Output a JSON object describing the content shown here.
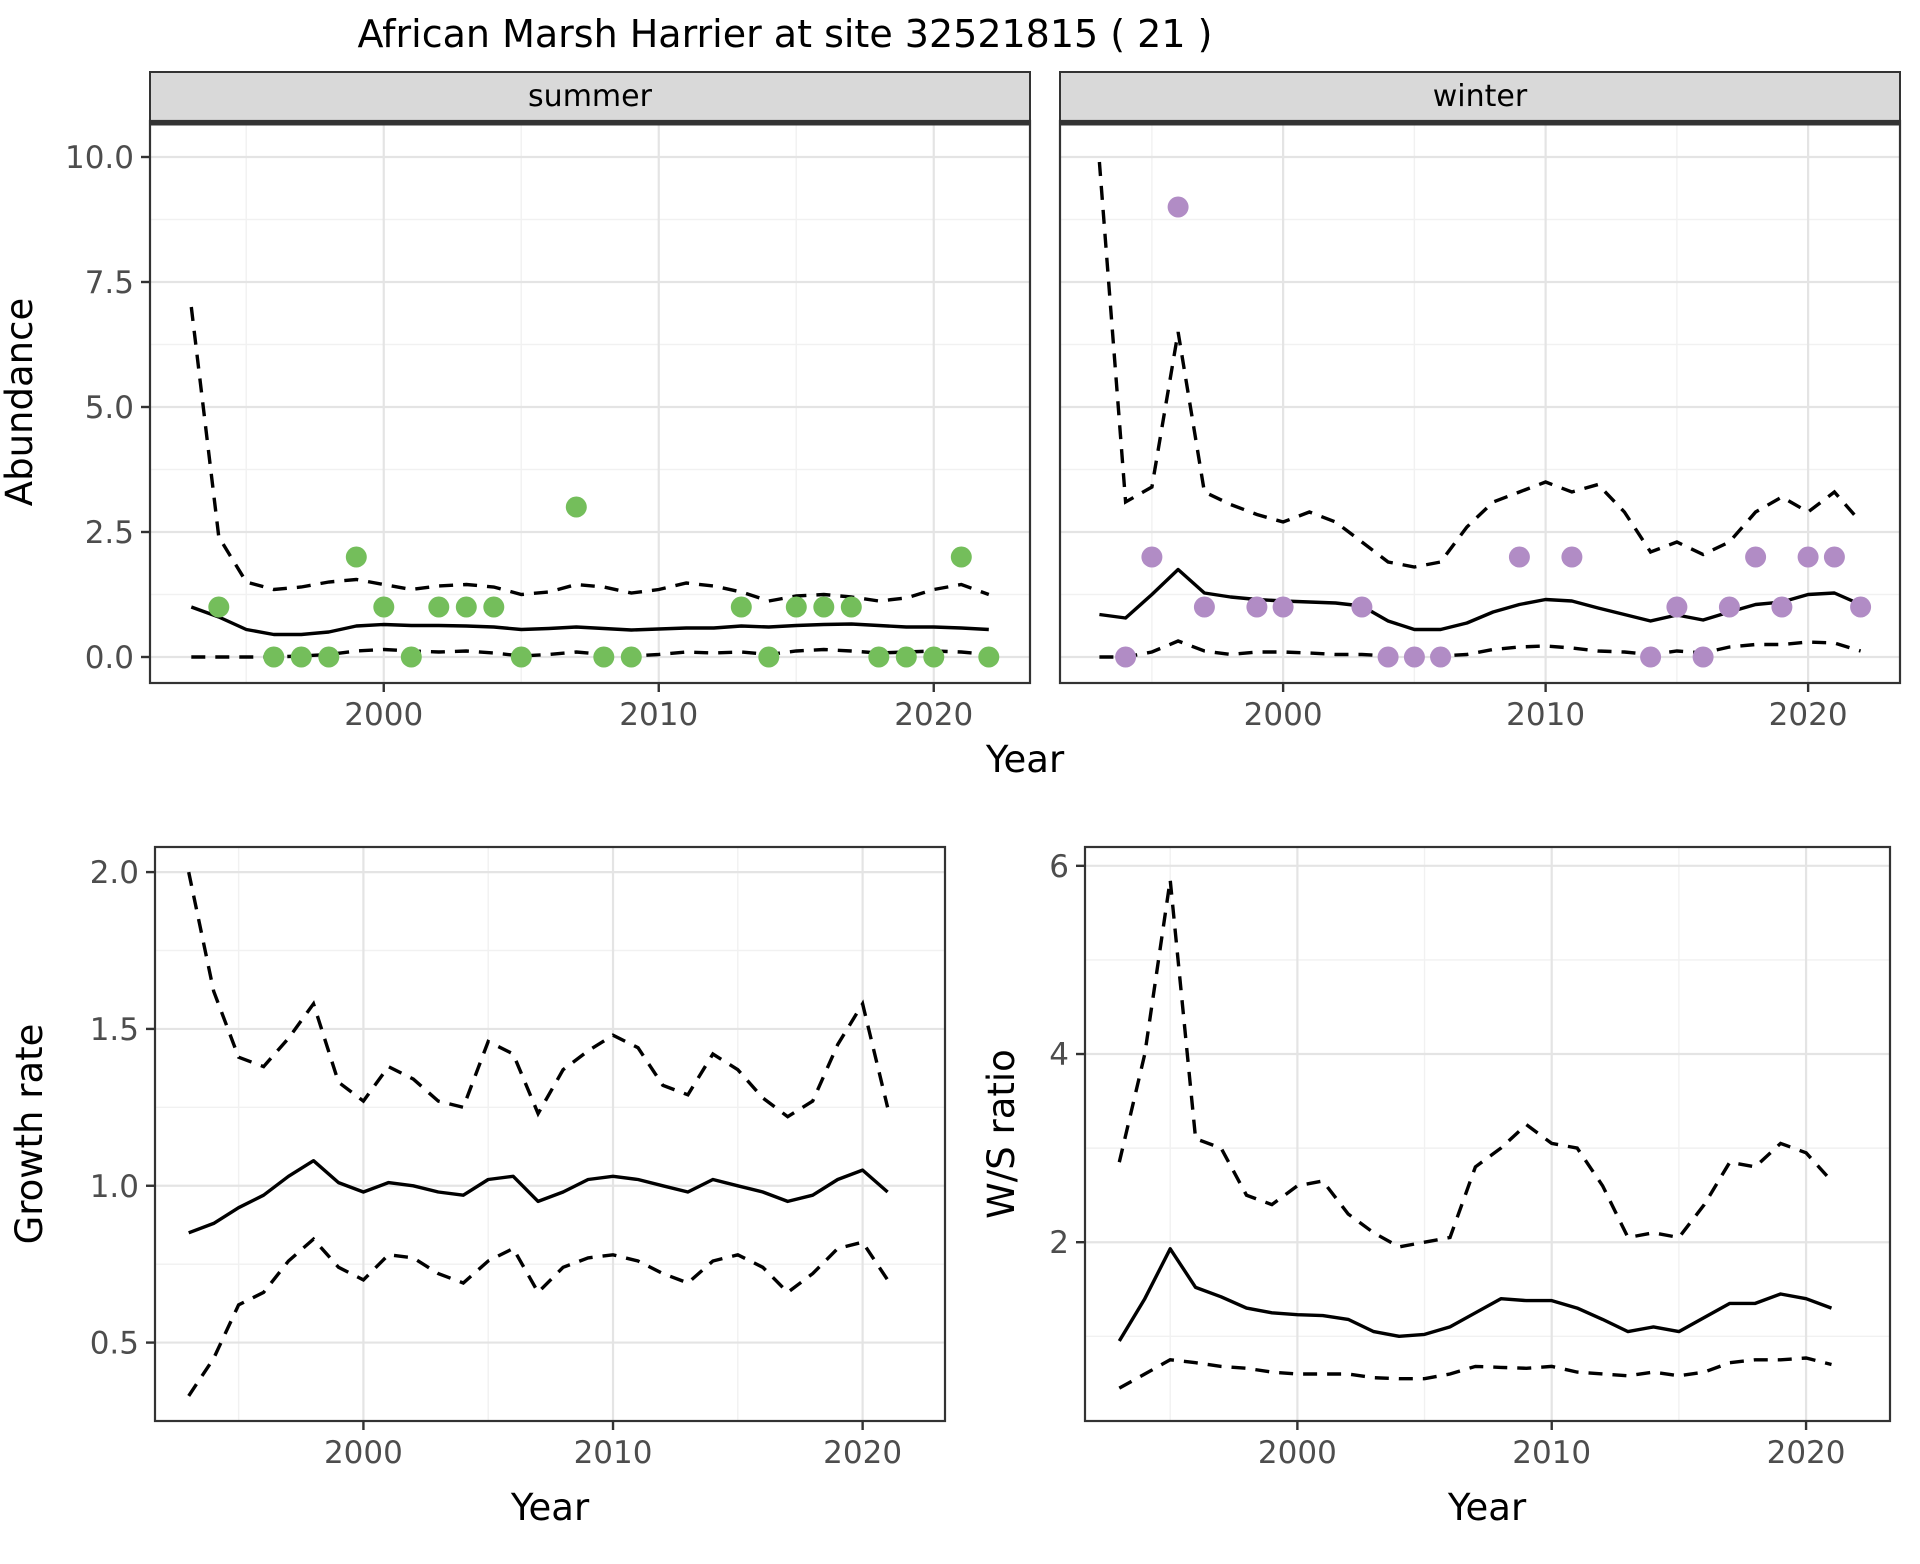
{
  "title": "African Marsh Harrier at site 32521815 ( 21 )",
  "labels": {
    "year_axis": "Year",
    "abundance_axis": "Abundance",
    "growth_axis": "Growth rate",
    "ws_axis": "W/S ratio",
    "facet_summer": "summer",
    "facet_winter": "winter"
  },
  "colors": {
    "summer_point": "#74BE5B",
    "winter_point": "#B18CC5",
    "line": "#000000",
    "grid_major": "#E4E4E4",
    "grid_minor": "#F1F1F1",
    "strip_bg": "#D9D9D9",
    "panel_border": "#333333",
    "tick_text": "#4D4D4D",
    "title_text": "#000000"
  },
  "chart_data": {
    "abundance": {
      "type": "line",
      "title": "",
      "xlabel": "Year",
      "ylabel": "Abundance",
      "x_range": [
        1991.5,
        2023.5
      ],
      "y_range": [
        -0.52,
        10.72
      ],
      "x_ticks_major": [
        2000,
        2010,
        2020
      ],
      "x_ticks_minor": [
        1995,
        2005,
        2015
      ],
      "y_ticks_major": [
        0,
        2.5,
        5,
        7.5,
        10
      ],
      "y_tick_labels": [
        "0.0",
        "2.5",
        "5.0",
        "7.5",
        "10.0"
      ],
      "y_ticks_minor": [
        1.25,
        3.75,
        6.25,
        8.75
      ],
      "line_years": [
        1993,
        1994,
        1995,
        1996,
        1997,
        1998,
        1999,
        2000,
        2001,
        2002,
        2003,
        2004,
        2005,
        2006,
        2007,
        2008,
        2009,
        2010,
        2011,
        2012,
        2013,
        2014,
        2015,
        2016,
        2017,
        2018,
        2019,
        2020,
        2021,
        2022
      ],
      "panels": [
        {
          "name": "summer",
          "mean": [
            1.0,
            0.8,
            0.55,
            0.45,
            0.45,
            0.5,
            0.62,
            0.65,
            0.63,
            0.63,
            0.62,
            0.6,
            0.55,
            0.57,
            0.6,
            0.57,
            0.54,
            0.56,
            0.58,
            0.58,
            0.62,
            0.6,
            0.63,
            0.65,
            0.66,
            0.63,
            0.6,
            0.6,
            0.58,
            0.55
          ],
          "hi": [
            7.0,
            2.4,
            1.5,
            1.35,
            1.4,
            1.5,
            1.55,
            1.45,
            1.35,
            1.42,
            1.45,
            1.4,
            1.25,
            1.3,
            1.45,
            1.4,
            1.28,
            1.35,
            1.48,
            1.42,
            1.3,
            1.12,
            1.22,
            1.25,
            1.2,
            1.12,
            1.18,
            1.35,
            1.45,
            1.25
          ],
          "lo": [
            0.0,
            0.0,
            0.0,
            0.0,
            0.02,
            0.05,
            0.12,
            0.15,
            0.12,
            0.1,
            0.12,
            0.08,
            0.02,
            0.05,
            0.1,
            0.05,
            0.02,
            0.05,
            0.1,
            0.08,
            0.1,
            0.05,
            0.12,
            0.15,
            0.12,
            0.08,
            0.1,
            0.12,
            0.1,
            0.05
          ],
          "point_years": [
            1994,
            1996,
            1997,
            1998,
            1999,
            2000,
            2001,
            2002,
            2003,
            2004,
            2005,
            2007,
            2008,
            2009,
            2013,
            2014,
            2015,
            2016,
            2017,
            2018,
            2019,
            2020,
            2021,
            2022
          ],
          "point_values": [
            1,
            0,
            0,
            0,
            2,
            1,
            0,
            1,
            1,
            1,
            0,
            3,
            0,
            0,
            1,
            0,
            1,
            1,
            1,
            0,
            0,
            0,
            2,
            0
          ]
        },
        {
          "name": "winter",
          "mean": [
            0.85,
            0.78,
            1.25,
            1.75,
            1.28,
            1.2,
            1.15,
            1.12,
            1.1,
            1.08,
            1.02,
            0.72,
            0.55,
            0.55,
            0.68,
            0.9,
            1.05,
            1.15,
            1.12,
            0.98,
            0.85,
            0.72,
            0.84,
            0.74,
            0.9,
            1.05,
            1.1,
            1.25,
            1.28,
            1.05
          ],
          "hi": [
            9.9,
            3.1,
            3.4,
            6.5,
            3.3,
            3.05,
            2.85,
            2.7,
            2.9,
            2.7,
            2.3,
            1.9,
            1.8,
            1.9,
            2.6,
            3.1,
            3.3,
            3.5,
            3.3,
            3.45,
            2.9,
            2.1,
            2.3,
            2.05,
            2.3,
            2.9,
            3.2,
            2.9,
            3.3,
            2.7
          ],
          "lo": [
            0.0,
            0.0,
            0.1,
            0.32,
            0.12,
            0.05,
            0.1,
            0.1,
            0.08,
            0.05,
            0.05,
            0.02,
            0.02,
            0.02,
            0.05,
            0.15,
            0.2,
            0.22,
            0.18,
            0.12,
            0.1,
            0.05,
            0.12,
            0.08,
            0.2,
            0.25,
            0.25,
            0.3,
            0.28,
            0.12
          ],
          "point_years": [
            1994,
            1995,
            1996,
            1997,
            1999,
            2000,
            2003,
            2004,
            2005,
            2006,
            2009,
            2011,
            2014,
            2015,
            2016,
            2017,
            2018,
            2019,
            2020,
            2021,
            2022
          ],
          "point_values": [
            0,
            2,
            9,
            1,
            1,
            1,
            1,
            0,
            0,
            0,
            2,
            2,
            0,
            1,
            0,
            1,
            2,
            1,
            2,
            2,
            1
          ]
        }
      ]
    },
    "growth": {
      "type": "line",
      "title": "",
      "xlabel": "Year",
      "ylabel": "Growth rate",
      "x_range": [
        1991.65,
        2023.3
      ],
      "y_range": [
        0.25,
        2.08
      ],
      "x_ticks_major": [
        2000,
        2010,
        2020
      ],
      "x_ticks_minor": [
        1995,
        2005,
        2015
      ],
      "y_ticks_major": [
        0.5,
        1.0,
        1.5,
        2.0
      ],
      "y_tick_labels": [
        "0.5",
        "1.0",
        "1.5",
        "2.0"
      ],
      "y_ticks_minor": [
        0.75,
        1.25,
        1.75
      ],
      "line_years": [
        1993,
        1994,
        1995,
        1996,
        1997,
        1998,
        1999,
        2000,
        2001,
        2002,
        2003,
        2004,
        2005,
        2006,
        2007,
        2008,
        2009,
        2010,
        2011,
        2012,
        2013,
        2014,
        2015,
        2016,
        2017,
        2018,
        2019,
        2020,
        2021
      ],
      "mean": [
        0.85,
        0.88,
        0.93,
        0.97,
        1.03,
        1.08,
        1.01,
        0.98,
        1.01,
        1.0,
        0.98,
        0.97,
        1.02,
        1.03,
        0.95,
        0.98,
        1.02,
        1.03,
        1.02,
        1.0,
        0.98,
        1.02,
        1.0,
        0.98,
        0.95,
        0.97,
        1.02,
        1.05,
        0.98
      ],
      "hi": [
        2.0,
        1.62,
        1.41,
        1.38,
        1.47,
        1.58,
        1.33,
        1.27,
        1.38,
        1.34,
        1.27,
        1.25,
        1.46,
        1.42,
        1.23,
        1.37,
        1.43,
        1.48,
        1.44,
        1.32,
        1.29,
        1.42,
        1.37,
        1.28,
        1.22,
        1.27,
        1.45,
        1.58,
        1.25
      ],
      "lo": [
        0.33,
        0.45,
        0.62,
        0.66,
        0.76,
        0.83,
        0.74,
        0.7,
        0.78,
        0.77,
        0.72,
        0.69,
        0.76,
        0.8,
        0.66,
        0.74,
        0.77,
        0.78,
        0.76,
        0.72,
        0.69,
        0.76,
        0.78,
        0.74,
        0.66,
        0.72,
        0.8,
        0.82,
        0.7
      ]
    },
    "ws_ratio": {
      "type": "line",
      "title": "",
      "xlabel": "Year",
      "ylabel": "W/S ratio",
      "x_range": [
        1991.65,
        2023.3
      ],
      "y_range": [
        0.1,
        6.2
      ],
      "x_ticks_major": [
        2000,
        2010,
        2020
      ],
      "x_ticks_minor": [
        1995,
        2005,
        2015
      ],
      "y_ticks_major": [
        2,
        4,
        6
      ],
      "y_tick_labels": [
        "2",
        "4",
        "6"
      ],
      "y_ticks_minor": [
        1,
        3,
        5
      ],
      "line_years": [
        1993,
        1994,
        1995,
        1996,
        1997,
        1998,
        1999,
        2000,
        2001,
        2002,
        2003,
        2004,
        2005,
        2006,
        2007,
        2008,
        2009,
        2010,
        2011,
        2012,
        2013,
        2014,
        2015,
        2016,
        2017,
        2018,
        2019,
        2020,
        2021
      ],
      "mean": [
        0.95,
        1.4,
        1.93,
        1.52,
        1.42,
        1.3,
        1.25,
        1.23,
        1.22,
        1.18,
        1.05,
        1.0,
        1.02,
        1.1,
        1.25,
        1.4,
        1.38,
        1.38,
        1.3,
        1.18,
        1.05,
        1.1,
        1.05,
        1.2,
        1.35,
        1.35,
        1.45,
        1.4,
        1.3
      ],
      "hi": [
        2.85,
        4.0,
        5.85,
        3.1,
        3.0,
        2.5,
        2.4,
        2.6,
        2.65,
        2.3,
        2.1,
        1.95,
        2.0,
        2.05,
        2.8,
        3.0,
        3.25,
        3.05,
        3.0,
        2.6,
        2.05,
        2.1,
        2.05,
        2.4,
        2.85,
        2.8,
        3.05,
        2.95,
        2.65
      ],
      "lo": [
        0.45,
        0.6,
        0.75,
        0.72,
        0.68,
        0.66,
        0.62,
        0.6,
        0.6,
        0.6,
        0.56,
        0.55,
        0.55,
        0.6,
        0.68,
        0.67,
        0.66,
        0.68,
        0.62,
        0.6,
        0.58,
        0.62,
        0.58,
        0.62,
        0.72,
        0.75,
        0.75,
        0.77,
        0.7
      ]
    }
  }
}
